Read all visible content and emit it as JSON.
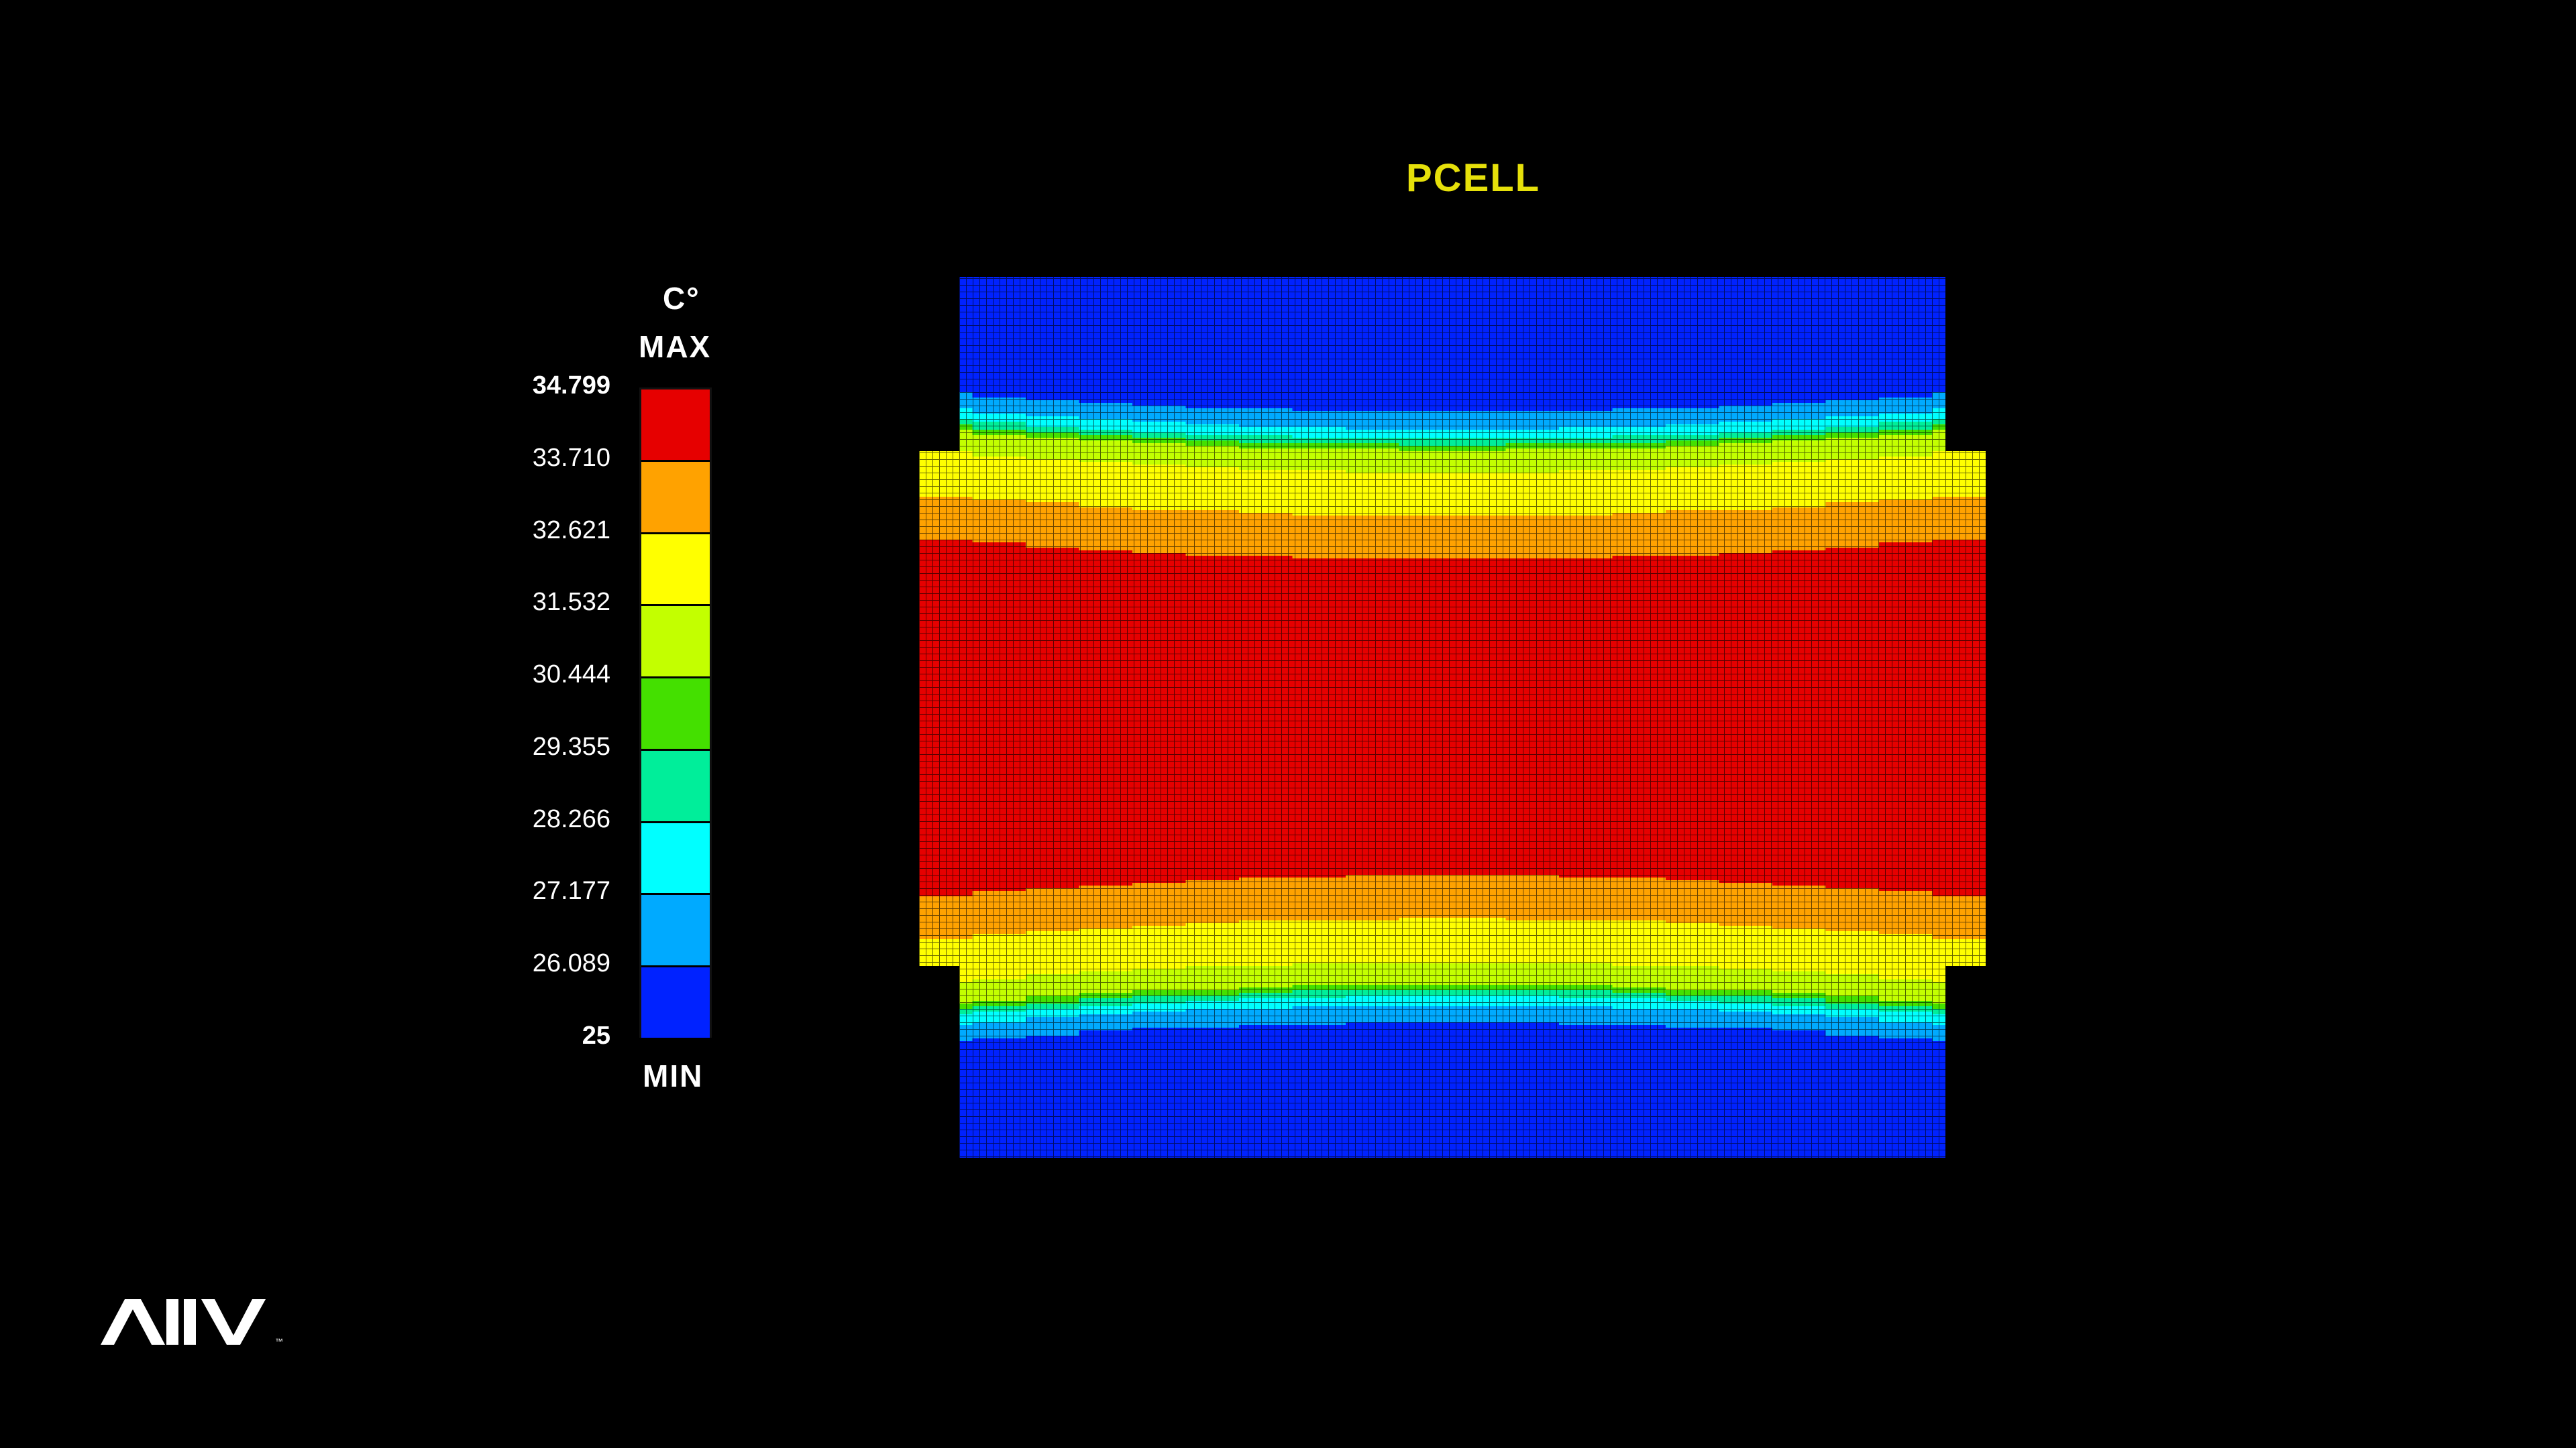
{
  "chart_data": {
    "type": "heatmap",
    "title": "PCELL",
    "unit": "C°",
    "max_label": "MAX",
    "min_label": "MIN",
    "legend": {
      "ticks": [
        "34.799",
        "33.710",
        "32.621",
        "31.532",
        "30.444",
        "29.355",
        "28.266",
        "27.177",
        "26.089",
        "25"
      ],
      "bands": [
        {
          "from": 33.71,
          "to": 34.799,
          "color": "#e60000"
        },
        {
          "from": 32.621,
          "to": 33.71,
          "color": "#ffa200"
        },
        {
          "from": 31.532,
          "to": 32.621,
          "color": "#ffff00"
        },
        {
          "from": 30.444,
          "to": 31.532,
          "color": "#c3ff00"
        },
        {
          "from": 29.355,
          "to": 30.444,
          "color": "#44e000"
        },
        {
          "from": 28.266,
          "to": 29.355,
          "color": "#00ee9a"
        },
        {
          "from": 27.177,
          "to": 28.266,
          "color": "#00ffff"
        },
        {
          "from": 26.089,
          "to": 27.177,
          "color": "#00aaff"
        },
        {
          "from": 25.0,
          "to": 26.089,
          "color": "#0022ff"
        }
      ]
    },
    "temperature_profile": [
      {
        "pos": 0.0,
        "value": 25.0
      },
      {
        "pos": 0.14,
        "value": 25.3
      },
      {
        "pos": 0.18,
        "value": 27.6
      },
      {
        "pos": 0.2,
        "value": 31.0
      },
      {
        "pos": 0.24,
        "value": 32.0
      },
      {
        "pos": 0.3,
        "value": 33.2
      },
      {
        "pos": 0.34,
        "value": 34.2
      },
      {
        "pos": 0.5,
        "value": 34.799
      },
      {
        "pos": 0.66,
        "value": 34.2
      },
      {
        "pos": 0.7,
        "value": 33.2
      },
      {
        "pos": 0.76,
        "value": 32.0
      },
      {
        "pos": 0.8,
        "value": 31.0
      },
      {
        "pos": 0.82,
        "value": 27.6
      },
      {
        "pos": 0.86,
        "value": 25.3
      },
      {
        "pos": 1.0,
        "value": 25.0
      }
    ]
  },
  "branding": {
    "logo_icon": "aiv-logo-icon"
  }
}
